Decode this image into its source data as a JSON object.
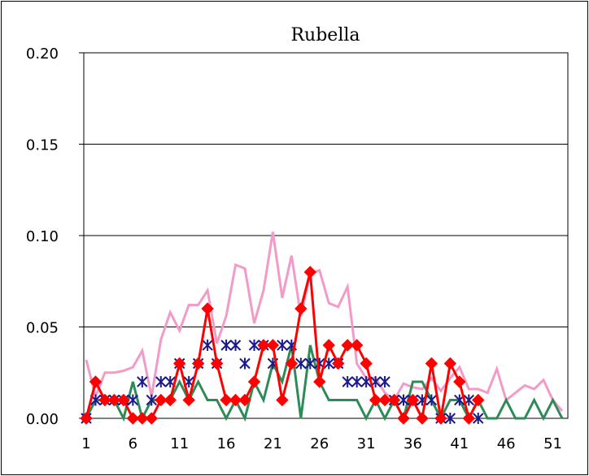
{
  "chart_data": {
    "type": "line",
    "title": "Rubella",
    "xlabel": "",
    "ylabel": "",
    "ylim": [
      0,
      0.2
    ],
    "y_ticks": [
      "0.00",
      "0.05",
      "0.10",
      "0.15",
      "0.20"
    ],
    "x_tick_labels": [
      "1",
      "6",
      "11",
      "16",
      "21",
      "26",
      "31",
      "36",
      "41",
      "46",
      "51"
    ],
    "xlim": [
      1,
      52
    ],
    "grid": "horizontal",
    "legend": "none",
    "colors": {
      "pink": "#f49ac8",
      "green": "#2e8b57",
      "navy": "#1a1a8c",
      "red": "#ff0000"
    },
    "series": [
      {
        "style": "pink-line",
        "x": [
          1,
          2,
          3,
          4,
          5,
          6,
          7,
          8,
          9,
          10,
          11,
          12,
          13,
          14,
          15,
          16,
          17,
          18,
          19,
          20,
          21,
          22,
          23,
          24,
          25,
          26,
          27,
          28,
          29,
          30,
          31,
          32,
          33,
          34,
          35,
          36,
          37,
          38,
          39,
          40,
          41,
          42,
          43,
          44,
          45,
          46,
          47,
          48,
          49,
          50,
          51,
          52
        ],
        "values": [
          0.032,
          0.012,
          0.025,
          0.025,
          0.026,
          0.028,
          0.037,
          0.012,
          0.043,
          0.058,
          0.048,
          0.062,
          0.062,
          0.07,
          0.041,
          0.056,
          0.084,
          0.082,
          0.052,
          0.07,
          0.102,
          0.066,
          0.089,
          0.056,
          0.079,
          0.081,
          0.063,
          0.061,
          0.072,
          0.03,
          0.022,
          0.022,
          0.014,
          0.01,
          0.019,
          0.017,
          0.016,
          0.022,
          0.015,
          0.022,
          0.028,
          0.016,
          0.016,
          0.014,
          0.027,
          0.01,
          0.014,
          0.018,
          0.016,
          0.021,
          0.01,
          0.004
        ]
      },
      {
        "style": "green-line",
        "x": [
          1,
          2,
          3,
          4,
          5,
          6,
          7,
          8,
          9,
          10,
          11,
          12,
          13,
          14,
          15,
          16,
          17,
          18,
          19,
          20,
          21,
          22,
          23,
          24,
          25,
          26,
          27,
          28,
          29,
          30,
          31,
          32,
          33,
          34,
          35,
          36,
          37,
          38,
          39,
          40,
          41,
          42,
          43,
          44,
          45,
          46,
          47,
          48,
          49,
          50,
          51,
          52
        ],
        "values": [
          0,
          0.01,
          0.01,
          0.01,
          0.0,
          0.02,
          0.0,
          0.01,
          0.01,
          0.01,
          0.02,
          0.01,
          0.02,
          0.01,
          0.01,
          0.0,
          0.01,
          0.0,
          0.02,
          0.01,
          0.03,
          0.02,
          0.04,
          0.0,
          0.04,
          0.02,
          0.01,
          0.01,
          0.01,
          0.01,
          0.0,
          0.01,
          0.0,
          0.01,
          0.0,
          0.02,
          0.02,
          0.01,
          0.0,
          0.01,
          0.01,
          0.0,
          0.01,
          0.0,
          0.0,
          0.01,
          0.0,
          0.0,
          0.01,
          0.0,
          0.01,
          0.0
        ]
      },
      {
        "style": "navy-asterisk",
        "x": [
          1,
          2,
          3,
          4,
          5,
          6,
          7,
          8,
          9,
          10,
          11,
          12,
          13,
          14,
          15,
          16,
          17,
          18,
          19,
          20,
          21,
          22,
          23,
          24,
          25,
          26,
          27,
          28,
          29,
          30,
          31,
          32,
          33,
          34,
          35,
          36,
          37,
          38,
          39,
          40,
          41,
          42,
          43
        ],
        "values": [
          0,
          0.01,
          0.01,
          0.01,
          0.01,
          0.01,
          0.02,
          0.01,
          0.02,
          0.02,
          0.03,
          0.02,
          0.03,
          0.04,
          0.03,
          0.04,
          0.04,
          0.03,
          0.04,
          0.04,
          0.03,
          0.04,
          0.04,
          0.03,
          0.03,
          0.03,
          0.03,
          0.03,
          0.02,
          0.02,
          0.02,
          0.02,
          0.02,
          0.01,
          0.01,
          0.01,
          0.01,
          0.01,
          0.0,
          0.0,
          0.01,
          0.01,
          0.0
        ]
      },
      {
        "style": "red-diamond",
        "x": [
          1,
          2,
          3,
          4,
          5,
          6,
          7,
          8,
          9,
          10,
          11,
          12,
          13,
          14,
          15,
          16,
          17,
          18,
          19,
          20,
          21,
          22,
          23,
          24,
          25,
          26,
          27,
          28,
          29,
          30,
          31,
          32,
          33,
          34,
          35,
          36,
          37,
          38,
          39,
          40,
          41,
          42,
          43
        ],
        "values": [
          0,
          0.02,
          0.01,
          0.01,
          0.01,
          0.0,
          0.0,
          0.0,
          0.01,
          0.01,
          0.03,
          0.01,
          0.03,
          0.06,
          0.03,
          0.01,
          0.01,
          0.01,
          0.02,
          0.04,
          0.04,
          0.01,
          0.03,
          0.06,
          0.08,
          0.02,
          0.04,
          0.03,
          0.04,
          0.04,
          0.03,
          0.01,
          0.01,
          0.01,
          0.0,
          0.01,
          0.0,
          0.03,
          0.0,
          0.03,
          0.02,
          0.0,
          0.01
        ]
      }
    ]
  }
}
